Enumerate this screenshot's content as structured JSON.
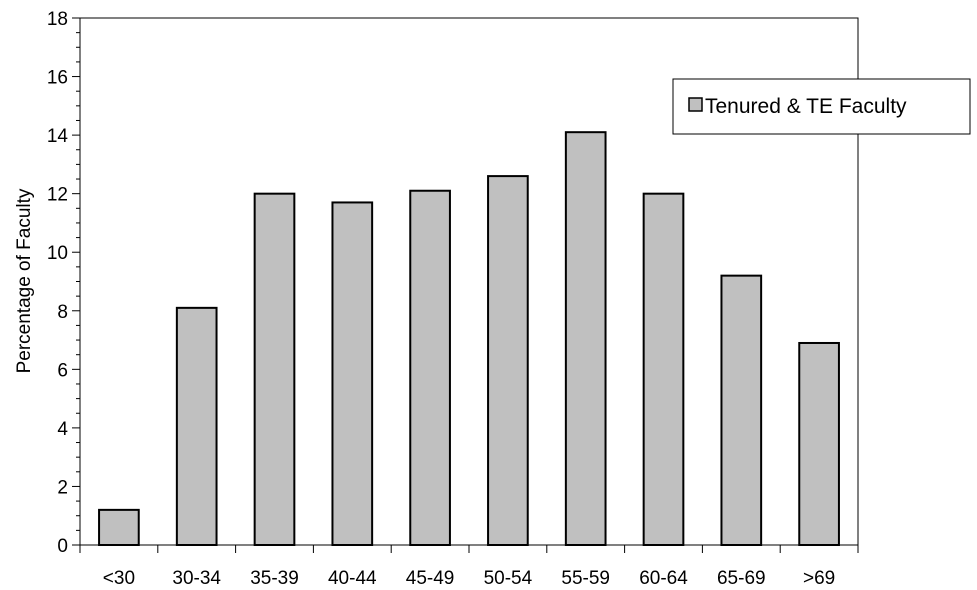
{
  "chart_data": {
    "type": "bar",
    "title": "",
    "xlabel": "",
    "ylabel": "Percentage of Faculty",
    "ylim": [
      0,
      18
    ],
    "yticks": [
      0,
      2,
      4,
      6,
      8,
      10,
      12,
      14,
      16,
      18
    ],
    "grid": false,
    "legend_position": "right",
    "categories": [
      "<30",
      "30-34",
      "35-39",
      "40-44",
      "45-49",
      "50-54",
      "55-59",
      "60-64",
      "65-69",
      ">69"
    ],
    "series": [
      {
        "name": "Tenured & TE Faculty",
        "color": "#c0c0c0",
        "values": [
          1.2,
          8.1,
          12.0,
          11.7,
          12.1,
          12.6,
          14.1,
          12.0,
          9.2,
          6.9
        ]
      }
    ]
  }
}
